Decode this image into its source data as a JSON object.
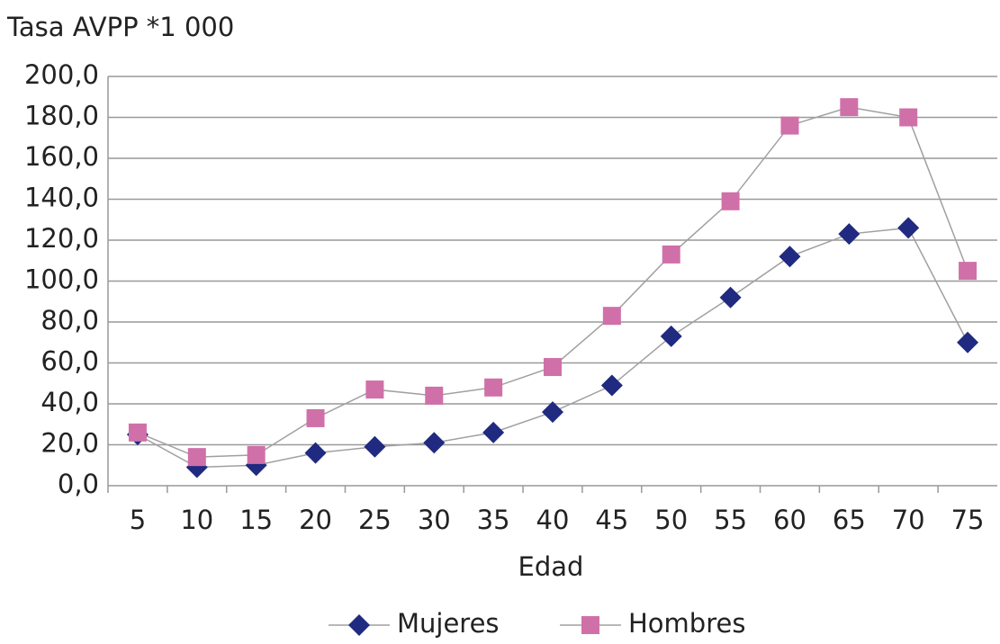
{
  "chart_data": {
    "type": "line",
    "title": "Tasa AVPP *1 000",
    "x_label": "Edad",
    "categories": [
      "5",
      "10",
      "15",
      "20",
      "25",
      "30",
      "35",
      "40",
      "45",
      "50",
      "55",
      "60",
      "65",
      "70",
      "75"
    ],
    "series": [
      {
        "name": "Mujeres",
        "color": "#1f2a80",
        "marker": "diamond",
        "values": [
          25,
          9,
          10,
          16,
          19,
          21,
          26,
          36,
          49,
          73,
          92,
          112,
          123,
          126,
          70
        ]
      },
      {
        "name": "Hombres",
        "color": "#d070a8",
        "marker": "square",
        "values": [
          26,
          14,
          15,
          33,
          47,
          44,
          48,
          58,
          83,
          113,
          139,
          176,
          185,
          180,
          105
        ]
      }
    ],
    "line_color": "#a0a0a0",
    "ylim": [
      0,
      200
    ],
    "yticks": [
      {
        "value": 0,
        "label": "0,0"
      },
      {
        "value": 20,
        "label": "20,0"
      },
      {
        "value": 40,
        "label": "40,0"
      },
      {
        "value": 60,
        "label": "60,0"
      },
      {
        "value": 80,
        "label": "80,0"
      },
      {
        "value": 100,
        "label": "100,0"
      },
      {
        "value": 120,
        "label": "120,0"
      },
      {
        "value": 140,
        "label": "140,0"
      },
      {
        "value": 160,
        "label": "160,0"
      },
      {
        "value": 180,
        "label": "180,0"
      },
      {
        "value": 200,
        "label": "200,0"
      }
    ],
    "grid": true,
    "legend": "bottom"
  }
}
